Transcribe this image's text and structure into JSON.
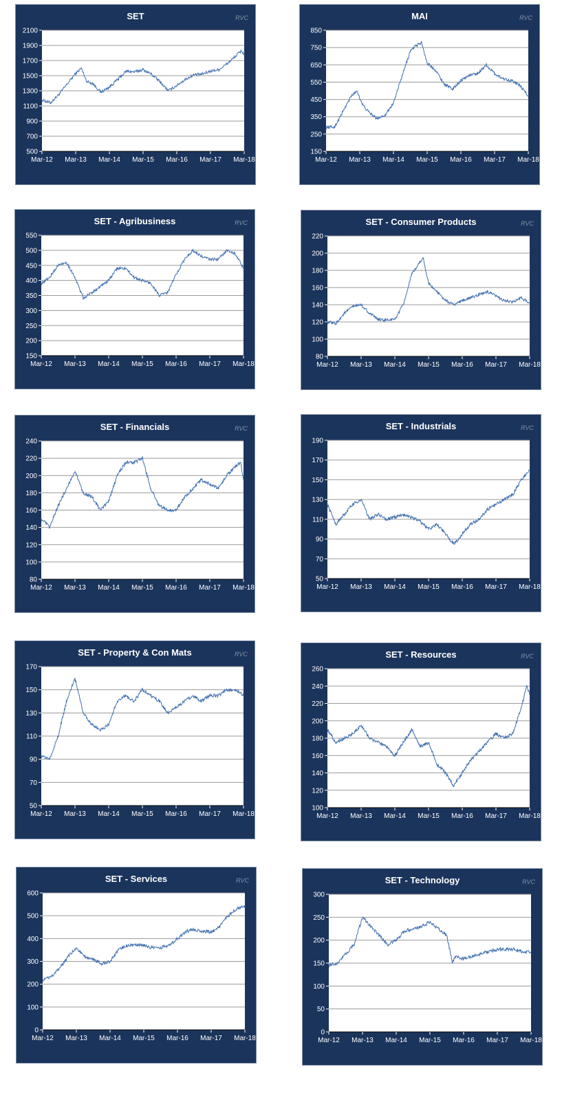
{
  "watermark": "RVC",
  "x_categories": [
    "Mar-12",
    "Mar-13",
    "Mar-14",
    "Mar-15",
    "Mar-16",
    "Mar-17",
    "Mar-18"
  ],
  "chart_data": [
    {
      "type": "line",
      "title": "SET",
      "ylim": [
        500,
        2100
      ],
      "yticks": [
        500,
        700,
        900,
        1100,
        1300,
        1500,
        1700,
        1900,
        2100
      ],
      "x": [
        "Mar-12",
        "Jun-12",
        "Sep-12",
        "Dec-12",
        "Mar-13",
        "May-13",
        "Jul-13",
        "Sep-13",
        "Dec-13",
        "Mar-14",
        "Jun-14",
        "Sep-14",
        "Dec-14",
        "Mar-15",
        "Jun-15",
        "Sep-15",
        "Dec-15",
        "Mar-16",
        "Jun-16",
        "Sep-16",
        "Dec-16",
        "Mar-17",
        "Jun-17",
        "Sep-17",
        "Dec-17",
        "Feb-18",
        "Mar-18"
      ],
      "values": [
        1180,
        1140,
        1250,
        1390,
        1530,
        1600,
        1420,
        1400,
        1280,
        1350,
        1450,
        1560,
        1550,
        1580,
        1520,
        1420,
        1300,
        1370,
        1450,
        1510,
        1520,
        1560,
        1580,
        1660,
        1760,
        1830,
        1780
      ],
      "grid": true
    },
    {
      "type": "line",
      "title": "MAI",
      "ylim": [
        150,
        850
      ],
      "yticks": [
        150,
        250,
        350,
        450,
        550,
        650,
        750,
        850
      ],
      "x": [
        "Mar-12",
        "Jun-12",
        "Sep-12",
        "Dec-12",
        "Feb-13",
        "Apr-13",
        "Jun-13",
        "Sep-13",
        "Dec-13",
        "Mar-14",
        "Jun-14",
        "Sep-14",
        "Nov-14",
        "Jan-15",
        "Mar-15",
        "Jun-15",
        "Sep-15",
        "Dec-15",
        "Mar-16",
        "Jun-16",
        "Sep-16",
        "Dec-16",
        "Mar-17",
        "Jun-17",
        "Sep-17",
        "Dec-17",
        "Mar-18"
      ],
      "values": [
        290,
        290,
        380,
        470,
        500,
        420,
        380,
        340,
        360,
        430,
        580,
        730,
        760,
        780,
        660,
        620,
        540,
        510,
        560,
        590,
        600,
        650,
        600,
        570,
        560,
        530,
        470
      ],
      "grid": true
    },
    {
      "type": "line",
      "title": "SET - Agribusiness",
      "ylim": [
        150,
        550
      ],
      "yticks": [
        150,
        200,
        250,
        300,
        350,
        400,
        450,
        500,
        550
      ],
      "x": [
        "Mar-12",
        "Jun-12",
        "Sep-12",
        "Dec-12",
        "Mar-13",
        "Jun-13",
        "Sep-13",
        "Dec-13",
        "Mar-14",
        "Jun-14",
        "Sep-14",
        "Dec-14",
        "Mar-15",
        "Jun-15",
        "Sep-15",
        "Dec-15",
        "Mar-16",
        "Jun-16",
        "Sep-16",
        "Dec-16",
        "Mar-17",
        "Jun-17",
        "Sep-17",
        "Dec-17",
        "Mar-18"
      ],
      "values": [
        390,
        410,
        450,
        460,
        410,
        340,
        360,
        380,
        400,
        440,
        440,
        410,
        400,
        390,
        350,
        360,
        420,
        470,
        500,
        480,
        470,
        470,
        500,
        490,
        440
      ],
      "grid": true
    },
    {
      "type": "line",
      "title": "SET - Consumer Products",
      "ylim": [
        80,
        220
      ],
      "yticks": [
        80,
        100,
        120,
        140,
        160,
        180,
        200,
        220
      ],
      "x": [
        "Mar-12",
        "Jun-12",
        "Sep-12",
        "Dec-12",
        "Mar-13",
        "Jun-13",
        "Sep-13",
        "Dec-13",
        "Mar-14",
        "Jun-14",
        "Sep-14",
        "Nov-14",
        "Jan-15",
        "Mar-15",
        "Jun-15",
        "Sep-15",
        "Dec-15",
        "Mar-16",
        "Jun-16",
        "Sep-16",
        "Dec-16",
        "Mar-17",
        "Jun-17",
        "Sep-17",
        "Dec-17",
        "Mar-18"
      ],
      "values": [
        120,
        118,
        130,
        138,
        140,
        130,
        123,
        122,
        123,
        140,
        175,
        185,
        195,
        165,
        155,
        145,
        140,
        145,
        148,
        152,
        155,
        150,
        145,
        143,
        148,
        142
      ],
      "grid": true
    },
    {
      "type": "line",
      "title": "SET - Financials",
      "ylim": [
        80,
        240
      ],
      "yticks": [
        80,
        100,
        120,
        140,
        160,
        180,
        200,
        220,
        240
      ],
      "x": [
        "Mar-12",
        "Jun-12",
        "Sep-12",
        "Dec-12",
        "Mar-13",
        "Jun-13",
        "Sep-13",
        "Dec-13",
        "Mar-14",
        "Jun-14",
        "Sep-14",
        "Dec-14",
        "Mar-15",
        "Jun-15",
        "Sep-15",
        "Dec-15",
        "Mar-16",
        "Jun-16",
        "Sep-16",
        "Dec-16",
        "Mar-17",
        "Jun-17",
        "Sep-17",
        "Dec-17",
        "Feb-18",
        "Mar-18"
      ],
      "values": [
        150,
        140,
        165,
        185,
        205,
        180,
        175,
        160,
        170,
        200,
        215,
        215,
        220,
        185,
        165,
        160,
        160,
        175,
        185,
        195,
        190,
        185,
        200,
        210,
        215,
        195
      ],
      "grid": true
    },
    {
      "type": "line",
      "title": "SET - Industrials",
      "ylim": [
        50,
        190
      ],
      "yticks": [
        50,
        70,
        90,
        110,
        130,
        150,
        170,
        190
      ],
      "x": [
        "Mar-12",
        "Jun-12",
        "Sep-12",
        "Dec-12",
        "Mar-13",
        "Jun-13",
        "Sep-13",
        "Dec-13",
        "Mar-14",
        "Jun-14",
        "Sep-14",
        "Dec-14",
        "Mar-15",
        "Jun-15",
        "Sep-15",
        "Dec-15",
        "Mar-16",
        "Jun-16",
        "Sep-16",
        "Dec-16",
        "Mar-17",
        "Jun-17",
        "Sep-17",
        "Dec-17",
        "Mar-18"
      ],
      "values": [
        125,
        105,
        115,
        125,
        130,
        110,
        115,
        110,
        112,
        115,
        112,
        108,
        100,
        105,
        95,
        85,
        95,
        105,
        110,
        120,
        125,
        130,
        135,
        150,
        160
      ],
      "grid": true
    },
    {
      "type": "line",
      "title": "SET - Property & Con Mats",
      "ylim": [
        50,
        170
      ],
      "yticks": [
        50,
        70,
        90,
        110,
        130,
        150,
        170
      ],
      "x": [
        "Mar-12",
        "Jun-12",
        "Sep-12",
        "Dec-12",
        "Mar-13",
        "Jun-13",
        "Sep-13",
        "Dec-13",
        "Mar-14",
        "Jun-14",
        "Sep-14",
        "Dec-14",
        "Mar-15",
        "Jun-15",
        "Sep-15",
        "Dec-15",
        "Mar-16",
        "Jun-16",
        "Sep-16",
        "Dec-16",
        "Mar-17",
        "Jun-17",
        "Sep-17",
        "Dec-17",
        "Mar-18"
      ],
      "values": [
        93,
        90,
        110,
        140,
        160,
        130,
        120,
        115,
        120,
        140,
        145,
        140,
        150,
        145,
        140,
        130,
        135,
        140,
        145,
        140,
        145,
        145,
        150,
        150,
        145
      ],
      "grid": true
    },
    {
      "type": "line",
      "title": "SET - Resources",
      "ylim": [
        100,
        260
      ],
      "yticks": [
        100,
        120,
        140,
        160,
        180,
        200,
        220,
        240,
        260
      ],
      "x": [
        "Mar-12",
        "Jun-12",
        "Sep-12",
        "Dec-12",
        "Mar-13",
        "Jun-13",
        "Sep-13",
        "Dec-13",
        "Mar-14",
        "Jun-14",
        "Sep-14",
        "Dec-14",
        "Mar-15",
        "Jun-15",
        "Sep-15",
        "Dec-15",
        "Mar-16",
        "Jun-16",
        "Sep-16",
        "Dec-16",
        "Mar-17",
        "Jun-17",
        "Sep-17",
        "Dec-17",
        "Feb-18",
        "Mar-18"
      ],
      "values": [
        190,
        175,
        180,
        185,
        195,
        180,
        175,
        170,
        160,
        175,
        190,
        170,
        175,
        150,
        140,
        125,
        140,
        155,
        165,
        175,
        185,
        180,
        185,
        215,
        240,
        230
      ],
      "grid": true
    },
    {
      "type": "line",
      "title": "SET - Services",
      "ylim": [
        0,
        600
      ],
      "yticks": [
        0,
        100,
        200,
        300,
        400,
        500,
        600
      ],
      "x": [
        "Mar-12",
        "Jun-12",
        "Sep-12",
        "Dec-12",
        "Mar-13",
        "Jun-13",
        "Sep-13",
        "Dec-13",
        "Mar-14",
        "Jun-14",
        "Sep-14",
        "Dec-14",
        "Mar-15",
        "Jun-15",
        "Sep-15",
        "Dec-15",
        "Mar-16",
        "Jun-16",
        "Sep-16",
        "Dec-16",
        "Mar-17",
        "Jun-17",
        "Sep-17",
        "Dec-17",
        "Mar-18"
      ],
      "values": [
        220,
        230,
        270,
        320,
        360,
        320,
        310,
        290,
        300,
        350,
        370,
        370,
        370,
        360,
        360,
        370,
        400,
        430,
        440,
        430,
        430,
        450,
        500,
        530,
        545
      ],
      "grid": true
    },
    {
      "type": "line",
      "title": "SET - Technology",
      "ylim": [
        0,
        300
      ],
      "yticks": [
        0,
        50,
        100,
        150,
        200,
        250,
        300
      ],
      "x": [
        "Mar-12",
        "Jun-12",
        "Sep-12",
        "Dec-12",
        "Mar-13",
        "Jun-13",
        "Sep-13",
        "Dec-13",
        "Mar-14",
        "Jun-14",
        "Sep-14",
        "Dec-14",
        "Mar-15",
        "Jun-15",
        "Sep-15",
        "Nov-15",
        "Dec-15",
        "Mar-16",
        "Jun-16",
        "Sep-16",
        "Dec-16",
        "Mar-17",
        "Jun-17",
        "Sep-17",
        "Dec-17",
        "Mar-18"
      ],
      "values": [
        145,
        150,
        170,
        190,
        250,
        230,
        210,
        190,
        200,
        220,
        225,
        230,
        240,
        225,
        210,
        150,
        165,
        160,
        165,
        170,
        175,
        180,
        180,
        180,
        175,
        175
      ],
      "grid": true
    }
  ]
}
